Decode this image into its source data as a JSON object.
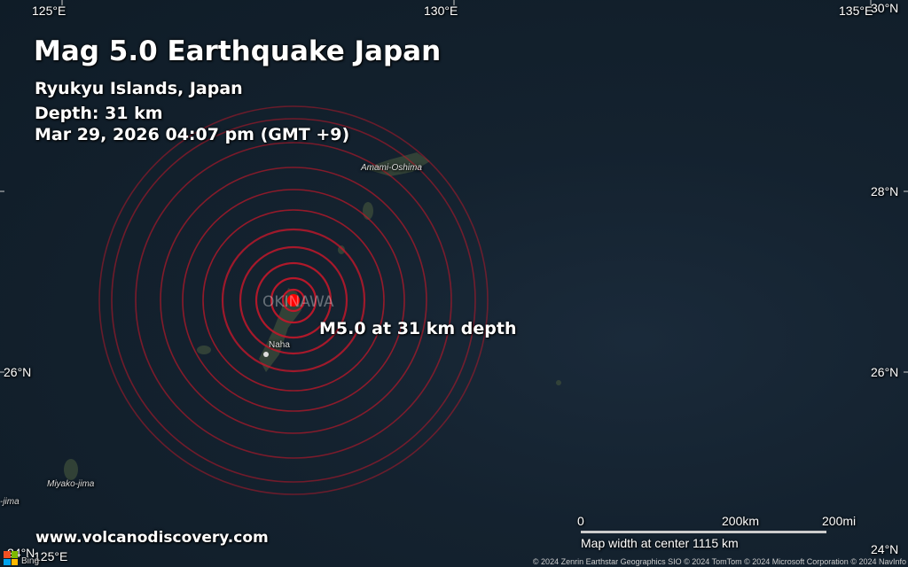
{
  "header": {
    "title": "Mag 5.0 Earthquake Japan",
    "region": "Ryukyu Islands, Japan",
    "depth": "Depth: 31 km",
    "datetime": "Mar 29, 2026 04:07 pm (GMT +9)"
  },
  "axes": {
    "lon": [
      "125°E",
      "130°E",
      "135°E"
    ],
    "lat": [
      "30°N",
      "28°N",
      "26°N",
      "24°N"
    ]
  },
  "places": {
    "amami": "Amami-Oshima",
    "okinawa": "OKINAWA",
    "naha": "Naha",
    "miyako": "Miyako-jima",
    "ishigaki": "-jima"
  },
  "quake": {
    "label": "M5.0 at 31 km depth",
    "color": "#ff0000",
    "ring_color": "#c0182a"
  },
  "scale": {
    "zero": "0",
    "km": "200km",
    "mi": "200mi",
    "width": "Map width at center 1115 km"
  },
  "footer": {
    "site": "www.volcanodiscovery.com",
    "copyright": "© 2024 Zenrin Earthstar Geographics  SIO © 2024 TomTom © 2024 Microsoft Corporation © 2024 NavInfo",
    "bing": "Bing"
  }
}
